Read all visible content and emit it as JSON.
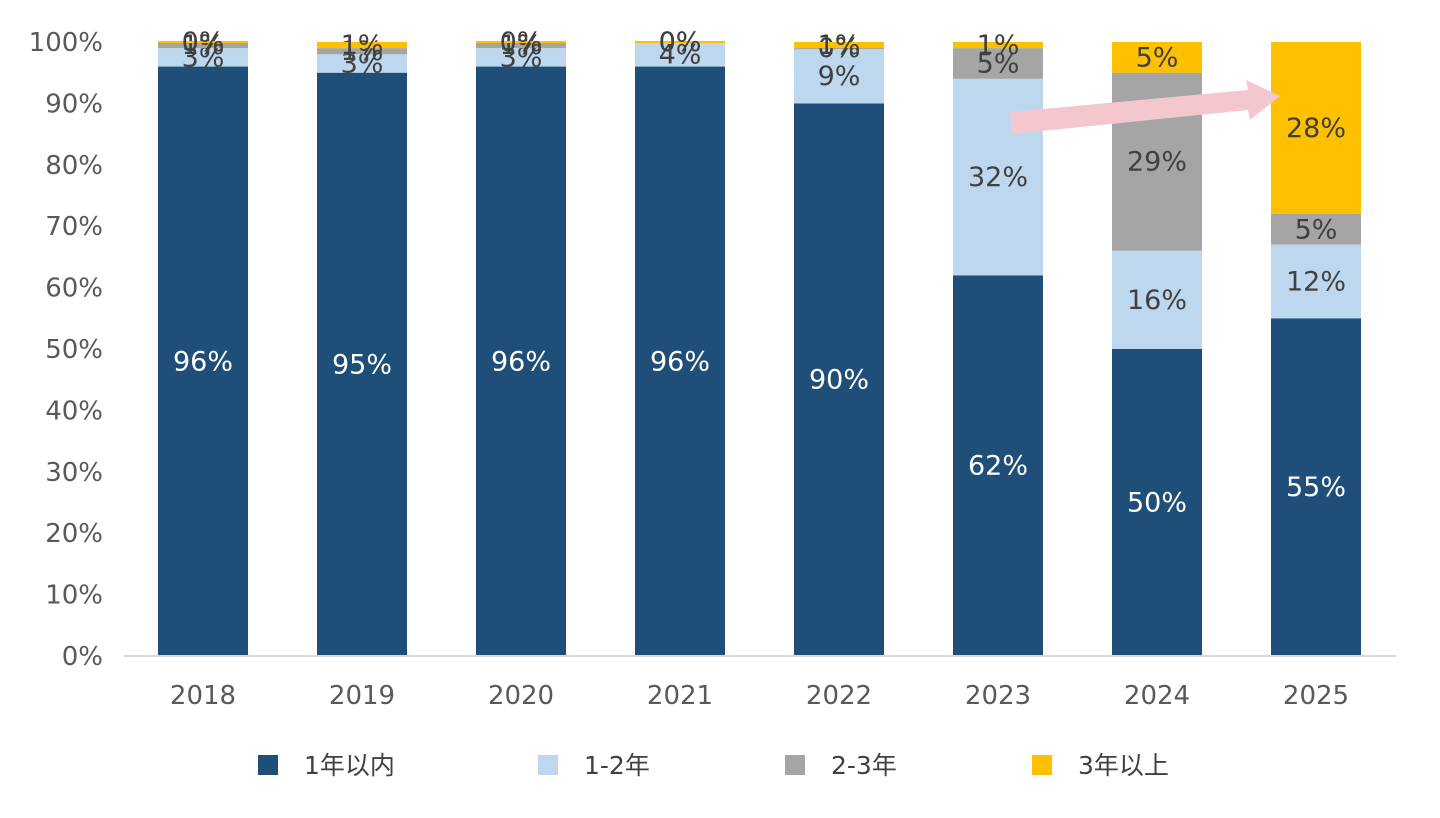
{
  "chart_data": {
    "type": "bar",
    "stacked": true,
    "percent": true,
    "title": "",
    "xlabel": "",
    "ylabel": "",
    "ylim": [
      0,
      100
    ],
    "y_ticks": [
      "0%",
      "10%",
      "20%",
      "30%",
      "40%",
      "50%",
      "60%",
      "70%",
      "80%",
      "90%",
      "100%"
    ],
    "grid": false,
    "legend_position": "bottom",
    "categories": [
      "2018",
      "2019",
      "2020",
      "2021",
      "2022",
      "2023",
      "2024",
      "2025"
    ],
    "series": [
      {
        "name": "1年以内",
        "color": "#1f4e79",
        "label_color": "#ffffff",
        "values": [
          96,
          95,
          96,
          96,
          90,
          62,
          50,
          55
        ],
        "labels": [
          "96%",
          "95%",
          "96%",
          "96%",
          "90%",
          "62%",
          "50%",
          "55%"
        ]
      },
      {
        "name": "1-2年",
        "color": "#bdd7ee",
        "label_color": "#404040",
        "values": [
          3,
          3,
          3,
          4,
          9,
          32,
          16,
          12
        ],
        "labels": [
          "3%",
          "3%",
          "3%",
          "4%",
          "9%",
          "32%",
          "16%",
          "12%"
        ]
      },
      {
        "name": "2-3年",
        "color": "#a5a5a5",
        "label_color": "#404040",
        "values": [
          1,
          1,
          1,
          0,
          0,
          5,
          29,
          5
        ],
        "labels": [
          "1%",
          "1%",
          "1%",
          "0%",
          "0%",
          "5%",
          "29%",
          "5%"
        ]
      },
      {
        "name": "3年以上",
        "color": "#ffc000",
        "label_color": "#404040",
        "values": [
          0,
          1,
          0,
          0,
          1,
          1,
          5,
          28
        ],
        "labels": [
          "0%",
          "1%",
          "0%",
          "0%",
          "1%",
          "1%",
          "5%",
          "28%"
        ]
      }
    ],
    "annotation": {
      "type": "arrow",
      "from_category": "2023",
      "to_category": "2025",
      "color": "#f4c7cf"
    }
  }
}
